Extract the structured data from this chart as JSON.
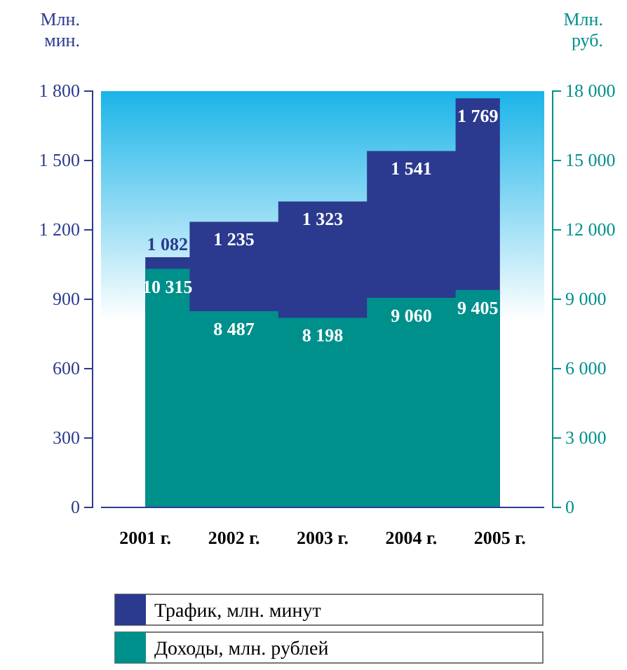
{
  "chart_data": {
    "type": "area",
    "categories": [
      "2001 г.",
      "2002 г.",
      "2003 г.",
      "2004 г.",
      "2005 г."
    ],
    "ylabel": "Млн. мин.",
    "y2label": "Млн. руб.",
    "ylim": [
      0,
      1800
    ],
    "yticks": [
      0,
      300,
      600,
      900,
      {
        "value": 1200,
        "label": "1 200"
      },
      {
        "value": 1500,
        "label": "1 500"
      },
      {
        "value": 1800,
        "label": "1 800"
      }
    ],
    "y2lim": [
      0,
      18000
    ],
    "y2ticks": [
      0,
      {
        "value": 3000,
        "label": "3 000"
      },
      {
        "value": 6000,
        "label": "6 000"
      },
      {
        "value": 9000,
        "label": "9 000"
      },
      {
        "value": 12000,
        "label": "12 000"
      },
      {
        "value": 15000,
        "label": "15 000"
      },
      {
        "value": 18000,
        "label": "18 000"
      }
    ],
    "series": [
      {
        "name": "Трафик, млн. минут",
        "color": "#2b3a8f",
        "values": [
          1082,
          1235,
          1323,
          1541,
          1769
        ],
        "value_labels": [
          "1 082",
          "1 235",
          "1 323",
          "1 541",
          "1 769"
        ]
      },
      {
        "name": "Доходы, млн. рублей",
        "color": "#00908c",
        "axis": "y2",
        "values": [
          10315,
          8487,
          8198,
          9060,
          9405
        ],
        "value_labels": [
          "10 315",
          "8 487",
          "8 198",
          "9 060",
          "9 405"
        ]
      }
    ],
    "legend": "bottom",
    "grid": false
  }
}
